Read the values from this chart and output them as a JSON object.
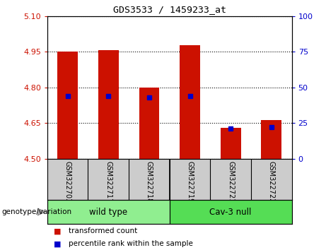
{
  "title": "GDS3533 / 1459233_at",
  "samples": [
    "GSM322703",
    "GSM322717",
    "GSM322718",
    "GSM322719",
    "GSM322721",
    "GSM322722"
  ],
  "group_labels": [
    "wild type",
    "Cav-3 null"
  ],
  "transformed_counts": [
    4.95,
    4.956,
    4.8,
    4.978,
    4.63,
    4.663
  ],
  "percentile_ranks": [
    44,
    44,
    43,
    44,
    21,
    22
  ],
  "ylim": [
    4.5,
    5.1
  ],
  "yticks": [
    4.5,
    4.65,
    4.8,
    4.95,
    5.1
  ],
  "right_yticks": [
    0,
    25,
    50,
    75,
    100
  ],
  "right_ylim": [
    0,
    100
  ],
  "bar_color": "#CC1100",
  "dot_color": "#0000CC",
  "wild_type_color": "#90EE90",
  "cav3_null_color": "#55DD55",
  "group_bg_color": "#CCCCCC",
  "genotype_label": "genotype/variation",
  "legend_bar": "transformed count",
  "legend_dot": "percentile rank within the sample",
  "bar_width": 0.5,
  "left_tick_color": "#CC1100",
  "right_tick_color": "#0000CC",
  "wild_type_count": 3,
  "cav3_null_count": 3
}
